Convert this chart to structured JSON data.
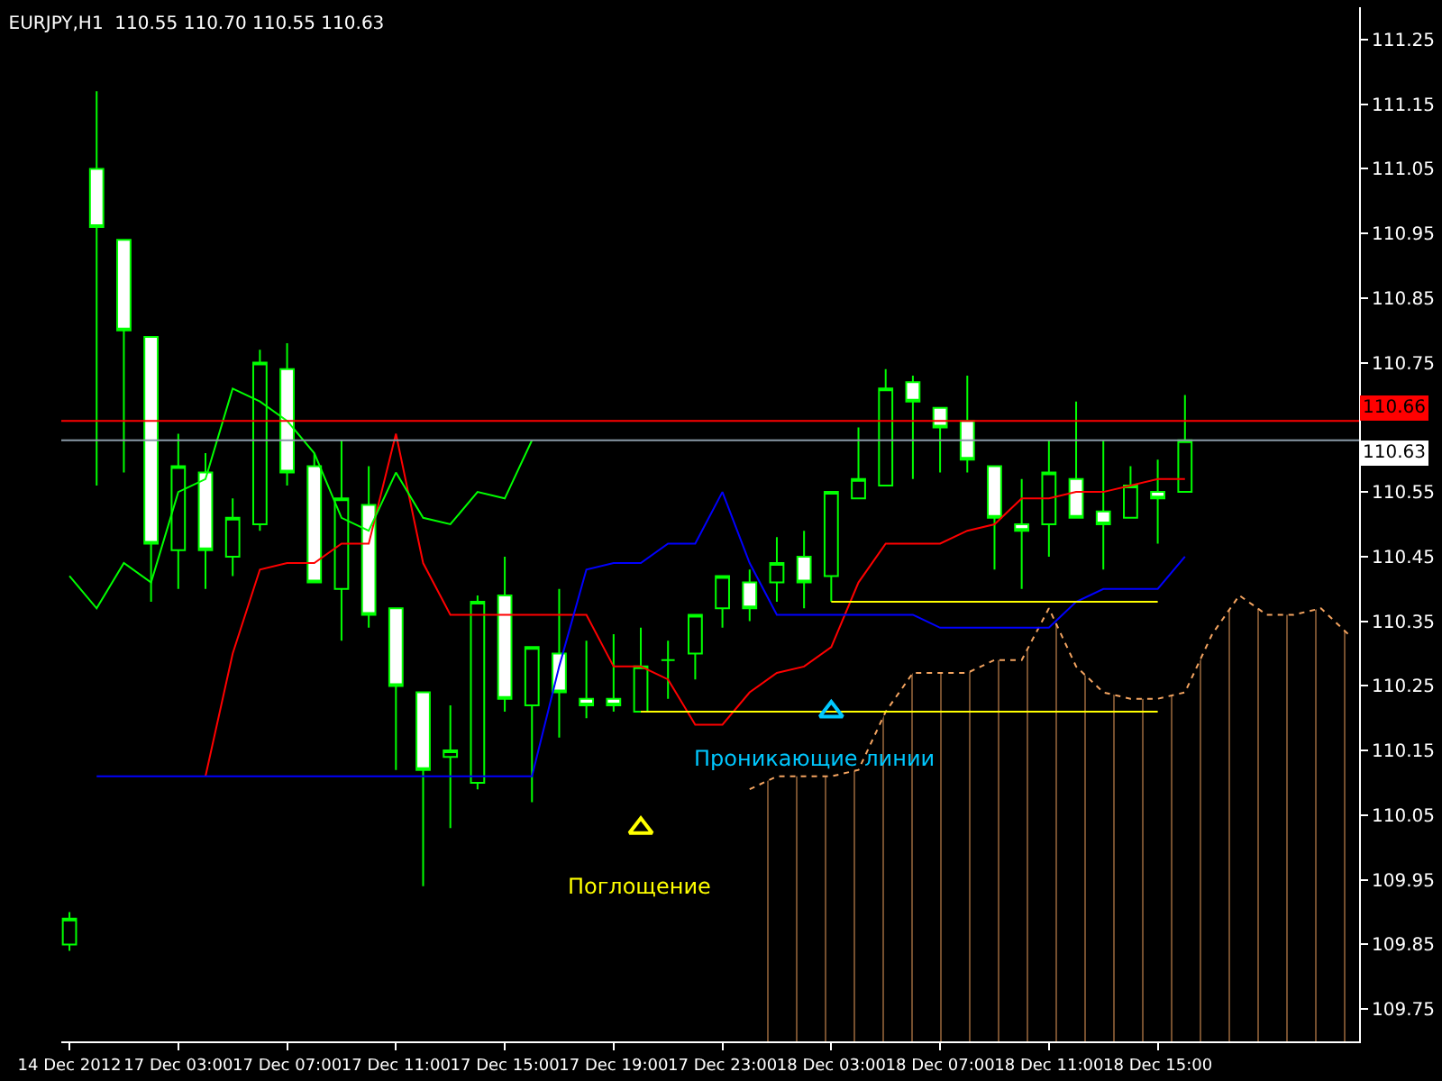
{
  "chart_data": {
    "type": "candlestick",
    "title": "EURJPY,H1  110.55 110.70 110.55 110.63",
    "color": "#00ff00",
    "categories": [
      "14 Dec 2012",
      null,
      null,
      null,
      "17 Dec 03:00",
      null,
      null,
      null,
      "17 Dec 07:00",
      null,
      null,
      null,
      "17 Dec 11:00",
      null,
      null,
      null,
      "17 Dec 15:00",
      null,
      null,
      null,
      "17 Dec 19:00",
      null,
      null,
      null,
      "17 Dec 23:00",
      null,
      null,
      null,
      "18 Dec 03:00",
      null,
      null,
      null,
      "18 Dec 07:00",
      null,
      null,
      null,
      "18 Dec 11:00",
      null,
      null,
      null,
      "18 Dec 15:00",
      null,
      null,
      null,
      null,
      null,
      null,
      null
    ],
    "ohlc": [
      [
        109.85,
        109.9,
        109.84,
        109.89
      ],
      [
        111.05,
        111.17,
        110.56,
        110.96
      ],
      [
        110.94,
        110.94,
        110.58,
        110.8
      ],
      [
        110.79,
        110.79,
        110.38,
        110.47
      ],
      [
        110.46,
        110.64,
        110.4,
        110.59
      ],
      [
        110.58,
        110.61,
        110.4,
        110.46
      ],
      [
        110.45,
        110.54,
        110.42,
        110.51
      ],
      [
        110.5,
        110.77,
        110.49,
        110.75
      ],
      [
        110.74,
        110.78,
        110.56,
        110.58
      ],
      [
        110.59,
        110.61,
        110.41,
        110.41
      ],
      [
        110.4,
        110.63,
        110.32,
        110.54
      ],
      [
        110.53,
        110.59,
        110.34,
        110.36
      ],
      [
        110.37,
        110.37,
        110.12,
        110.25
      ],
      [
        110.24,
        110.24,
        109.94,
        110.12
      ],
      [
        110.14,
        110.22,
        110.03,
        110.15
      ],
      [
        110.1,
        110.39,
        110.09,
        110.38
      ],
      [
        110.39,
        110.45,
        110.21,
        110.23
      ],
      [
        110.22,
        110.31,
        110.07,
        110.31
      ],
      [
        110.3,
        110.4,
        110.17,
        110.24
      ],
      [
        110.23,
        110.32,
        110.2,
        110.22
      ],
      [
        110.23,
        110.33,
        110.21,
        110.22
      ],
      [
        110.21,
        110.34,
        110.21,
        110.28
      ],
      [
        110.29,
        110.32,
        110.23,
        110.29
      ],
      [
        110.3,
        110.36,
        110.26,
        110.36
      ],
      [
        110.37,
        110.42,
        110.34,
        110.42
      ],
      [
        110.41,
        110.43,
        110.35,
        110.37
      ],
      [
        110.41,
        110.48,
        110.38,
        110.44
      ],
      [
        110.45,
        110.49,
        110.37,
        110.41
      ],
      [
        110.42,
        110.55,
        110.38,
        110.55
      ],
      [
        110.54,
        110.65,
        110.54,
        110.57
      ],
      [
        110.56,
        110.74,
        110.56,
        110.71
      ],
      [
        110.72,
        110.73,
        110.57,
        110.69
      ],
      [
        110.68,
        110.68,
        110.58,
        110.65
      ],
      [
        110.66,
        110.73,
        110.58,
        110.6
      ],
      [
        110.59,
        110.59,
        110.43,
        110.51
      ],
      [
        110.5,
        110.57,
        110.4,
        110.49
      ],
      [
        110.5,
        110.63,
        110.45,
        110.58
      ],
      [
        110.57,
        110.69,
        110.51,
        110.51
      ],
      [
        110.52,
        110.63,
        110.43,
        110.5
      ],
      [
        110.51,
        110.59,
        110.51,
        110.56
      ],
      [
        110.55,
        110.6,
        110.47,
        110.54
      ],
      [
        110.55,
        110.7,
        110.55,
        110.63
      ],
      null,
      null,
      null,
      null,
      null,
      null
    ],
    "series": [
      {
        "type": "area",
        "color": "#f4a460",
        "line_style": "dashed",
        "values": [
          null,
          null,
          null,
          null,
          null,
          null,
          null,
          null,
          null,
          null,
          null,
          null,
          null,
          null,
          null,
          null,
          null,
          null,
          null,
          null,
          null,
          null,
          null,
          null,
          null,
          110.09,
          110.11,
          110.11,
          110.11,
          110.12,
          110.21,
          110.27,
          110.27,
          110.27,
          110.29,
          110.29,
          110.37,
          110.28,
          110.24,
          110.23,
          110.23,
          110.24,
          110.33,
          110.39,
          110.36,
          110.36,
          110.37,
          110.33
        ]
      },
      {
        "type": "line",
        "color": "#ff0000",
        "values": [
          null,
          null,
          null,
          null,
          null,
          110.11,
          110.3,
          110.43,
          110.44,
          110.44,
          110.47,
          110.47,
          110.64,
          110.44,
          110.36,
          110.36,
          110.36,
          110.36,
          110.36,
          110.36,
          110.28,
          110.28,
          110.26,
          110.19,
          110.19,
          110.24,
          110.27,
          110.28,
          110.31,
          110.41,
          110.47,
          110.47,
          110.47,
          110.49,
          110.5,
          110.54,
          110.54,
          110.55,
          110.55,
          110.56,
          110.57,
          110.57,
          null,
          null,
          null,
          null,
          null,
          null
        ]
      },
      {
        "type": "line",
        "color": "#0000ff",
        "values": [
          null,
          110.11,
          110.11,
          110.11,
          110.11,
          110.11,
          110.11,
          110.11,
          110.11,
          110.11,
          110.11,
          110.11,
          110.11,
          110.11,
          110.11,
          110.11,
          110.11,
          110.11,
          110.28,
          110.43,
          110.44,
          110.44,
          110.47,
          110.47,
          110.55,
          110.44,
          110.36,
          110.36,
          110.36,
          110.36,
          110.36,
          110.36,
          110.34,
          110.34,
          110.34,
          110.34,
          110.34,
          110.38,
          110.4,
          110.4,
          110.4,
          110.45,
          null,
          null,
          null,
          null,
          null,
          null
        ]
      },
      {
        "type": "line",
        "color": "#00ff00",
        "values": [
          110.42,
          110.37,
          110.44,
          110.41,
          110.55,
          110.57,
          110.71,
          110.69,
          110.66,
          110.61,
          110.51,
          110.49,
          110.58,
          110.51,
          110.5,
          110.55,
          110.54,
          110.63,
          null,
          null,
          null,
          null,
          null,
          null,
          null,
          null,
          null,
          null,
          null,
          null,
          null,
          null,
          null,
          null,
          null,
          null,
          null,
          null,
          null,
          null,
          null,
          null,
          null,
          null,
          null,
          null,
          null,
          null
        ]
      },
      {
        "type": "line",
        "color": "#ffff00",
        "values": [
          null,
          null,
          null,
          null,
          null,
          null,
          null,
          null,
          null,
          null,
          null,
          null,
          null,
          null,
          null,
          null,
          null,
          null,
          null,
          null,
          null,
          110.21,
          null,
          null,
          null,
          null,
          null,
          null,
          null,
          null,
          null,
          null,
          null,
          null,
          null,
          null,
          null,
          null,
          null,
          null,
          110.21,
          null,
          null,
          null,
          null,
          null,
          null,
          null
        ]
      },
      {
        "type": "line",
        "color": "#ffff00",
        "values": [
          null,
          null,
          null,
          null,
          null,
          null,
          null,
          null,
          null,
          null,
          null,
          null,
          null,
          null,
          null,
          null,
          null,
          null,
          null,
          null,
          null,
          null,
          null,
          null,
          null,
          null,
          null,
          null,
          110.38,
          null,
          null,
          null,
          null,
          null,
          null,
          null,
          null,
          null,
          null,
          null,
          110.38,
          null,
          null,
          null,
          null,
          null,
          null,
          null
        ]
      },
      {
        "type": "scatter",
        "marker": "triangle",
        "color": "#ffff00",
        "values": [
          null,
          null,
          null,
          null,
          null,
          null,
          null,
          null,
          null,
          null,
          null,
          null,
          null,
          null,
          null,
          null,
          null,
          null,
          null,
          null,
          null,
          110.03,
          null,
          null,
          null,
          null,
          null,
          null,
          null,
          null,
          null,
          null,
          null,
          null,
          null,
          null,
          null,
          null,
          null,
          null,
          null,
          null,
          null,
          null,
          null,
          null,
          null,
          null
        ]
      },
      {
        "type": "scatter",
        "marker": "triangle",
        "color": "#00c8ff",
        "values": [
          null,
          null,
          null,
          null,
          null,
          null,
          null,
          null,
          null,
          null,
          null,
          null,
          null,
          null,
          null,
          null,
          null,
          null,
          null,
          null,
          null,
          null,
          null,
          null,
          null,
          null,
          null,
          null,
          110.21,
          null,
          null,
          null,
          null,
          null,
          null,
          null,
          null,
          null,
          null,
          null,
          null,
          null,
          null,
          null,
          null,
          null,
          null,
          null
        ]
      }
    ],
    "ref_lines": [
      {
        "axis": "y",
        "value": 110.66,
        "label": "110.66",
        "color": "#ff0000"
      },
      {
        "axis": "y",
        "value": 110.63,
        "label": "110.63",
        "color": "#8a9aa8"
      }
    ],
    "annotations": [
      "Проникающие линии",
      "Поглощение"
    ],
    "ylim": [
      109.7,
      111.3
    ],
    "yticks": [
      109.75,
      109.85,
      109.95,
      110.05,
      110.15,
      110.25,
      110.35,
      110.45,
      110.55,
      110.75,
      110.85,
      110.95,
      111.05,
      111.15,
      111.25
    ]
  }
}
